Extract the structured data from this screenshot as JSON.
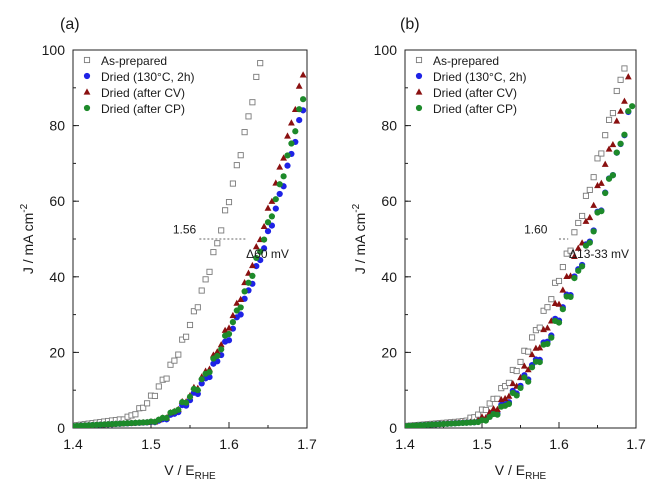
{
  "chart_data": [
    {
      "type": "scatter",
      "panel_label": "(a)",
      "xlabel_main": "V / E",
      "xlabel_sub": "RHE",
      "ylabel_main": "J / mA cm",
      "ylabel_sup": "-2",
      "xlim": [
        1.4,
        1.7
      ],
      "ylim": [
        0,
        100
      ],
      "xticks": [
        1.4,
        1.5,
        1.6,
        1.7
      ],
      "xtick_labels": [
        "1.4",
        "1.5",
        "1.6",
        "1.7"
      ],
      "yticks": [
        0,
        20,
        40,
        60,
        80,
        100
      ],
      "ytick_labels": [
        "0",
        "20",
        "40",
        "60",
        "80",
        "100"
      ],
      "grid": false,
      "legend_position": "top-left",
      "annotations": [
        {
          "text": "1.56",
          "x": 1.558,
          "y": 51.5
        },
        {
          "text": "Δ60 mV",
          "x": 1.622,
          "y": 45
        }
      ],
      "guide_lines": [
        {
          "x1": 1.562,
          "x2": 1.622,
          "y": 50
        }
      ],
      "series": [
        {
          "name": "As-prepared",
          "marker": "open-square",
          "color": "#7a7a7a",
          "curve": {
            "onset": 1.454,
            "end": 1.642,
            "jmax": 99,
            "exp": 2.0,
            "base": 0.6,
            "base_rise": 1.5,
            "noise": 1.0
          }
        },
        {
          "name": "Dried (130°C, 2h)",
          "marker": "circle",
          "color": "#1e22e6",
          "curve": {
            "onset": 1.497,
            "end": 1.699,
            "jmax": 88,
            "exp": 2.0,
            "base": 0.5,
            "base_rise": 1.0,
            "noise": 1.0
          }
        },
        {
          "name": "Dried (after CV)",
          "marker": "triangle",
          "color": "#8a1010",
          "curve": {
            "onset": 1.494,
            "end": 1.695,
            "jmax": 94,
            "exp": 2.0,
            "base": 0.5,
            "base_rise": 1.0,
            "noise": 1.0
          }
        },
        {
          "name": "Dried (after CP)",
          "marker": "circle",
          "color": "#1d8a2a",
          "curve": {
            "onset": 1.493,
            "end": 1.699,
            "jmax": 91,
            "exp": 2.0,
            "base": 0.5,
            "base_rise": 1.0,
            "noise": 1.0
          }
        }
      ]
    },
    {
      "type": "scatter",
      "panel_label": "(b)",
      "xlabel_main": "V / E",
      "xlabel_sub": "RHE",
      "ylabel_main": "J / mA cm",
      "ylabel_sup": "-2",
      "xlim": [
        1.4,
        1.7
      ],
      "ylim": [
        0,
        100
      ],
      "xticks": [
        1.4,
        1.5,
        1.6,
        1.7
      ],
      "xtick_labels": [
        "1.4",
        "1.5",
        "1.6",
        "1.7"
      ],
      "yticks": [
        0,
        20,
        40,
        60,
        80,
        100
      ],
      "ytick_labels": [
        "0",
        "20",
        "40",
        "60",
        "80",
        "100"
      ],
      "grid": false,
      "legend_position": "top-left",
      "annotations": [
        {
          "text": "1.60",
          "x": 1.585,
          "y": 51.5
        },
        {
          "text": "Δ13-33 mV",
          "x": 1.613,
          "y": 45
        }
      ],
      "guide_lines": [
        {
          "x1": 1.6,
          "x2": 1.612,
          "y": 50
        }
      ],
      "series": [
        {
          "name": "As-prepared",
          "marker": "open-square",
          "color": "#7a7a7a",
          "curve": {
            "onset": 1.47,
            "end": 1.69,
            "jmax": 100,
            "exp": 1.8,
            "base": 0.5,
            "base_rise": 1.2,
            "noise": 1.2
          }
        },
        {
          "name": "Dried (130°C, 2h)",
          "marker": "circle",
          "color": "#1e22e6",
          "curve": {
            "onset": 1.487,
            "end": 1.694,
            "jmax": 85,
            "exp": 1.8,
            "base": 0.5,
            "base_rise": 1.0,
            "noise": 1.5
          }
        },
        {
          "name": "Dried (after CV)",
          "marker": "triangle",
          "color": "#8a1010",
          "curve": {
            "onset": 1.482,
            "end": 1.692,
            "jmax": 93,
            "exp": 1.8,
            "base": 0.5,
            "base_rise": 1.0,
            "noise": 1.5
          }
        },
        {
          "name": "Dried (after CP)",
          "marker": "circle",
          "color": "#1d8a2a",
          "curve": {
            "onset": 1.49,
            "end": 1.695,
            "jmax": 86,
            "exp": 1.8,
            "base": 0.5,
            "base_rise": 1.0,
            "noise": 1.5
          }
        }
      ]
    }
  ]
}
